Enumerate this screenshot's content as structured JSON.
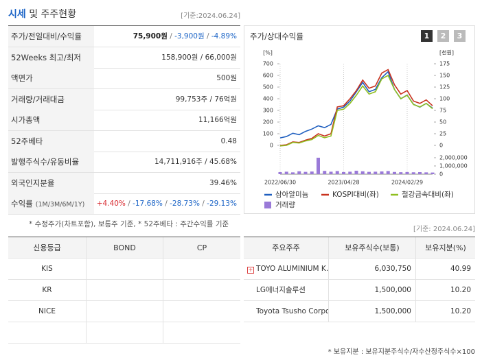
{
  "header": {
    "title_main": "시세",
    "title_rest": "및 주주현황",
    "date": "[기준:2024.06.24]"
  },
  "summary_table": {
    "rows": [
      {
        "label": "주가/전일대비/수익률",
        "parts": [
          {
            "text": "75,900원",
            "color": "#222222",
            "bold": true
          },
          {
            "text": " / ",
            "color": "#777777"
          },
          {
            "text": "-3,900원",
            "color": "#1a63c6"
          },
          {
            "text": " / ",
            "color": "#777777"
          },
          {
            "text": "-4.89%",
            "color": "#1a63c6"
          }
        ]
      },
      {
        "label": "52Weeks 최고/최저",
        "parts": [
          {
            "text": "158,900원 / 66,000원",
            "color": "#333333"
          }
        ]
      },
      {
        "label": "액면가",
        "parts": [
          {
            "text": "500원",
            "color": "#333333"
          }
        ]
      },
      {
        "label": "거래량/거래대금",
        "parts": [
          {
            "text": "99,753주 / 76억원",
            "color": "#333333"
          }
        ]
      },
      {
        "label": "시가총액",
        "parts": [
          {
            "text": "11,166억원",
            "color": "#333333"
          }
        ]
      },
      {
        "label": "52주베타",
        "parts": [
          {
            "text": "0.48",
            "color": "#333333"
          }
        ]
      },
      {
        "label": "발행주식수/유동비율",
        "parts": [
          {
            "text": "14,711,916주 / 45.68%",
            "color": "#333333"
          }
        ]
      },
      {
        "label": "외국인지분율",
        "parts": [
          {
            "text": "39.46%",
            "color": "#333333"
          }
        ]
      },
      {
        "label": "수익률",
        "sublabel": "(1M/3M/6M/1Y)",
        "parts": [
          {
            "text": "+4.40%",
            "color": "#d7262c"
          },
          {
            "text": " / ",
            "color": "#777777"
          },
          {
            "text": "-17.68%",
            "color": "#1a63c6"
          },
          {
            "text": " / ",
            "color": "#777777"
          },
          {
            "text": "-28.73%",
            "color": "#1a63c6"
          },
          {
            "text": " / ",
            "color": "#777777"
          },
          {
            "text": "-29.13%",
            "color": "#1a63c6"
          }
        ]
      }
    ]
  },
  "footnote_left": "* 수정주가(차트포함), 보통주 기준, * 52주베타 : 주간수익률 기준",
  "chart_panel": {
    "title": "주가/상대수익률",
    "buttons": [
      "1",
      "2",
      "3"
    ]
  },
  "chart_data": {
    "type": "line",
    "categories": [
      "2022/06/30",
      null,
      null,
      null,
      null,
      null,
      null,
      null,
      null,
      null,
      "2023/04/28",
      null,
      null,
      null,
      null,
      null,
      null,
      null,
      null,
      null,
      "2024/02/29",
      null,
      null,
      null,
      null
    ],
    "ylabel": "[%]",
    "y2label": "[천원]",
    "ylim": [
      0,
      700
    ],
    "yticks": [
      0,
      100,
      200,
      300,
      400,
      500,
      600,
      700
    ],
    "y2lim": [
      0,
      175
    ],
    "y2ticks": [
      0,
      25,
      50,
      75,
      100,
      125,
      150,
      175
    ],
    "y3lim": [
      0,
      2000000
    ],
    "y3ticks": [
      0,
      {
        "value": 1000000,
        "label": "1,000,000"
      },
      {
        "value": 2000000,
        "label": "2,000,000"
      }
    ],
    "series": [
      {
        "name": "삼아알미늄",
        "color": "#1f5fbf",
        "axis": "y2",
        "values": [
          16,
          19,
          26,
          23,
          30,
          35,
          42,
          38,
          45,
          78,
          82,
          95,
          115,
          135,
          115,
          120,
          145,
          158,
          120,
          100,
          108,
          88,
          82,
          90,
          80
        ]
      },
      {
        "name": "KOSPI대비(좌)",
        "color": "#c8321e",
        "axis": "y",
        "values": [
          0,
          5,
          30,
          25,
          45,
          60,
          100,
          80,
          100,
          330,
          340,
          400,
          470,
          560,
          490,
          510,
          620,
          650,
          520,
          440,
          470,
          380,
          360,
          390,
          340
        ]
      },
      {
        "name": "철강금속대비(좌)",
        "color": "#8fbf1f",
        "axis": "y",
        "values": [
          -5,
          0,
          25,
          20,
          38,
          50,
          85,
          65,
          80,
          300,
          310,
          360,
          430,
          510,
          440,
          460,
          570,
          600,
          480,
          400,
          430,
          350,
          330,
          360,
          315
        ]
      },
      {
        "name": "거래량",
        "color": "#9a7ad8",
        "axis": "y3",
        "type": "bar",
        "values": [
          250000,
          300000,
          220000,
          350000,
          280000,
          320000,
          2000000,
          400000,
          300000,
          380000,
          260000,
          300000,
          420000,
          350000,
          280000,
          300000,
          330000,
          380000,
          270000,
          240000,
          260000,
          230000,
          250000,
          220000,
          200000
        ]
      }
    ]
  },
  "credit_table": {
    "headers": [
      "신용등급",
      "BOND",
      "CP"
    ],
    "rows": [
      [
        "KIS"
      ],
      [
        "KR"
      ],
      [
        "NICE"
      ]
    ]
  },
  "shareholder_table": {
    "date": "[기준: 2024.06.24]",
    "headers": [
      "주요주주",
      "보유주식수(보통)",
      "보유지분(%)"
    ],
    "rows": [
      [
        "TOYO ALUMINIUM K. …",
        "6,030,750",
        "40.99"
      ],
      [
        "LG에너지솔루션",
        "1,500,000",
        "10.20"
      ],
      [
        "Toyota Tsusho Corpor…",
        "1,500,000",
        "10.20"
      ]
    ]
  },
  "footnote_right": "* 보유지분 : 보유지분주식수/자수산정주식수×100"
}
